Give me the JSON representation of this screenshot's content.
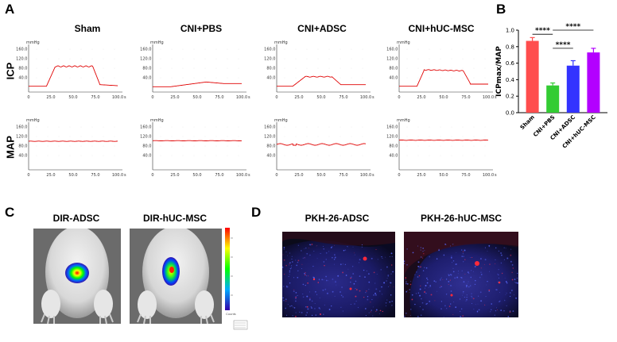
{
  "panels": {
    "a": {
      "letter": "A"
    },
    "b": {
      "letter": "B"
    },
    "c": {
      "letter": "C"
    },
    "d": {
      "letter": "D"
    }
  },
  "panel_a": {
    "columns": [
      "Sham",
      "CNI+PBS",
      "CNI+ADSC",
      "CNI+hUC-MSC"
    ],
    "rows": [
      "ICP",
      "MAP"
    ],
    "unit": "mmHg",
    "y_ticks": [
      "160.0",
      "120.0",
      "80.0",
      "40.0"
    ],
    "x_ticks": [
      "0",
      "25.0",
      "50.0",
      "75.0",
      "100.0"
    ],
    "x_unit": "s"
  },
  "chart_data": {
    "type": "bar",
    "categories": [
      "Sham",
      "CNI+PBS",
      "CNI+ADSC",
      "CNI+hUC-MSC"
    ],
    "values": [
      0.87,
      0.33,
      0.57,
      0.73
    ],
    "errors": [
      0.04,
      0.03,
      0.06,
      0.05
    ],
    "colors": [
      "#ff4d4d",
      "#33cc33",
      "#3333ff",
      "#b300ff"
    ],
    "ylabel": "ICPmax/MAP",
    "ylim": [
      0,
      1.0
    ],
    "yticks": [
      "0.0",
      "0.2",
      "0.4",
      "0.6",
      "0.8",
      "1.0"
    ],
    "significance": [
      {
        "label": "****",
        "from": 0,
        "to": 1
      },
      {
        "label": "****",
        "from": 1,
        "to": 3
      },
      {
        "label": "****",
        "from": 1,
        "to": 2
      }
    ]
  },
  "panel_c": {
    "titles": [
      "DIR-ADSC",
      "DIR-hUC-MSC"
    ],
    "scale_label": "Counts"
  },
  "panel_d": {
    "titles": [
      "PKH-26-ADSC",
      "PKH-26-hUC-MSC"
    ]
  }
}
